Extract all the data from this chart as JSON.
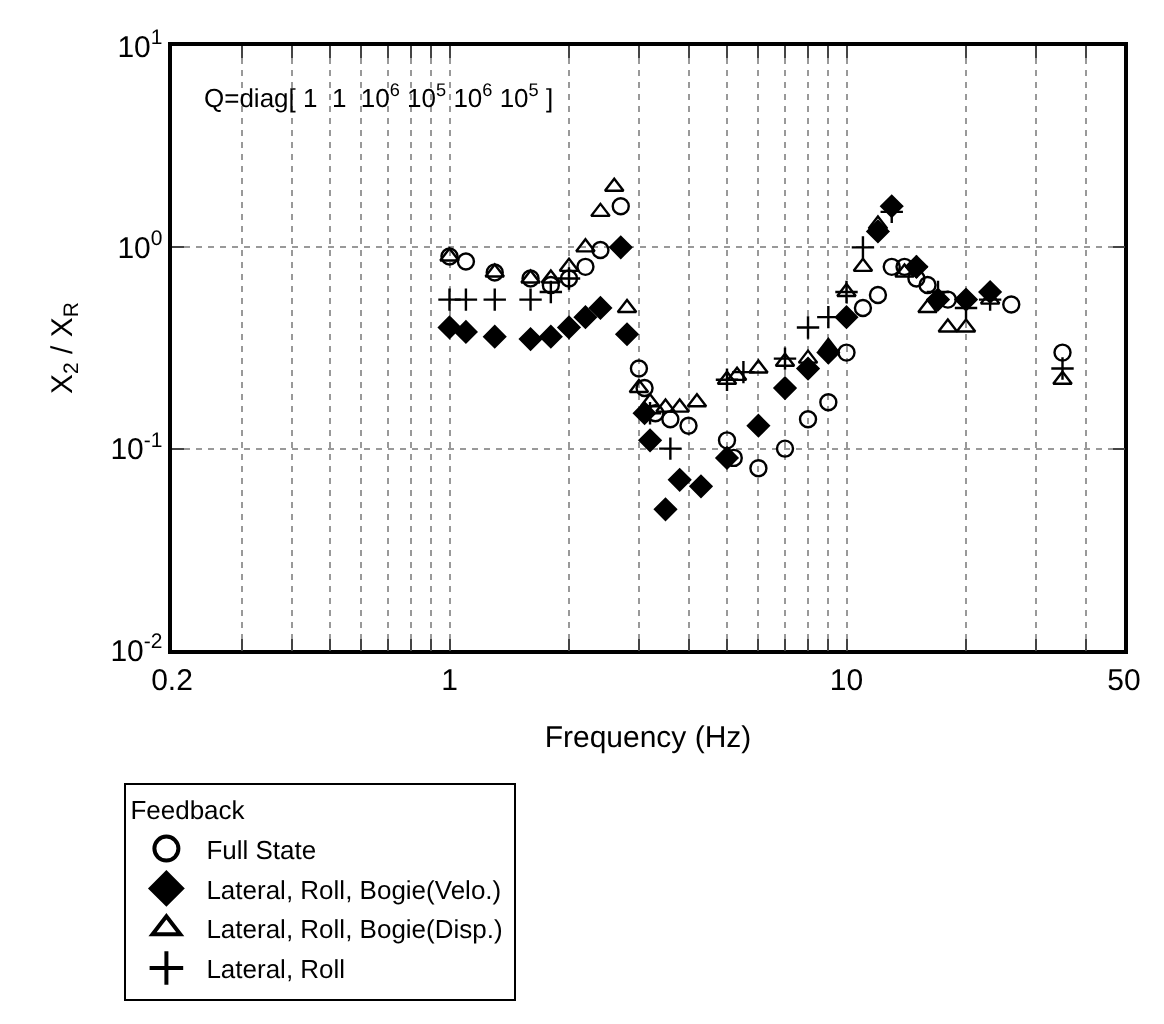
{
  "chart_data": {
    "type": "scatter",
    "xlabel": "Frequency (Hz)",
    "ylabel": "X$_{2}$ / X$_{R}$",
    "legend_title": "Feedback",
    "log": "xy",
    "grid": true,
    "legend": "bottom",
    "annotations": [
      "Q=diag[ 1  1  10$^{6}$ 10$^{5}$ 10$^{6}$ 10$^{5}$ ]"
    ],
    "xlim": [
      0.2,
      50
    ],
    "ylim": [
      0.01,
      10
    ],
    "xticks": [
      0.2,
      {
        "value": 0.3,
        "label": null
      },
      {
        "value": 0.4,
        "label": null
      },
      {
        "value": 0.5,
        "label": null
      },
      {
        "value": 0.6,
        "label": null
      },
      {
        "value": 0.7,
        "label": null
      },
      {
        "value": 0.8,
        "label": null
      },
      {
        "value": 0.9,
        "label": null
      },
      1,
      {
        "value": 2,
        "label": null
      },
      {
        "value": 3,
        "label": null
      },
      {
        "value": 4,
        "label": null
      },
      {
        "value": 5,
        "label": null
      },
      {
        "value": 6,
        "label": null
      },
      {
        "value": 7,
        "label": null
      },
      {
        "value": 8,
        "label": null
      },
      {
        "value": 9,
        "label": null
      },
      10,
      {
        "value": 20,
        "label": null
      },
      {
        "value": 30,
        "label": null
      },
      {
        "value": 40,
        "label": null
      },
      50
    ],
    "yticks": [
      {
        "value": 0.01,
        "label": "10$^{-2}$"
      },
      {
        "value": 0.1,
        "label": "10$^{-1}$"
      },
      {
        "value": 1,
        "label": "10$^{0}$"
      },
      {
        "value": 10,
        "label": "10$^{1}$"
      }
    ],
    "series": [
      {
        "name": "Full State",
        "color": "#000000",
        "marker": "circle",
        "x": [
          1.0,
          1.1,
          1.3,
          1.6,
          1.8,
          2.0,
          2.2,
          2.4,
          2.7,
          3.0,
          3.1,
          3.3,
          3.6,
          4.0,
          4.2,
          5.0,
          5.2,
          6.0,
          7.0,
          8.0,
          9.0,
          10,
          11,
          12,
          13,
          14,
          15,
          16,
          18,
          20,
          23,
          26,
          35
        ],
        "values": [
          0.9,
          0.85,
          0.75,
          0.7,
          0.65,
          0.7,
          0.8,
          0.97,
          1.6,
          0.25,
          0.2,
          0.15,
          0.14,
          0.13,
          null,
          0.11,
          0.09,
          0.08,
          0.1,
          0.14,
          0.17,
          0.3,
          0.5,
          0.58,
          0.8,
          0.8,
          0.7,
          0.65,
          0.55,
          null,
          null,
          0.52,
          0.3
        ]
      },
      {
        "name": "Lateral, Roll, Bogie(Velo.)",
        "color": "#000000",
        "marker": "diamond",
        "x": [
          1.0,
          1.1,
          1.3,
          1.6,
          1.8,
          2.0,
          2.2,
          2.4,
          2.7,
          2.8,
          3.1,
          3.2,
          3.5,
          3.8,
          4.3,
          5.0,
          6.0,
          7.0,
          8.0,
          9.0,
          10,
          12,
          13,
          15,
          17,
          20,
          23
        ],
        "values": [
          0.4,
          0.38,
          0.36,
          0.35,
          0.36,
          0.4,
          0.45,
          0.5,
          1.0,
          0.37,
          0.15,
          0.11,
          0.05,
          0.07,
          0.065,
          0.09,
          0.13,
          0.2,
          0.25,
          0.3,
          0.45,
          1.2,
          1.6,
          0.8,
          0.55,
          0.55,
          0.6
        ]
      },
      {
        "name": "Lateral, Roll, Bogie(Disp.)",
        "color": "#000000",
        "marker": "triangle",
        "x": [
          1.0,
          1.3,
          1.6,
          1.8,
          2.0,
          2.2,
          2.4,
          2.6,
          2.8,
          3.0,
          3.2,
          3.5,
          3.8,
          4.2,
          5.0,
          5.3,
          6.0,
          7.0,
          8.0,
          9.0,
          10,
          11,
          12,
          14,
          16,
          18,
          20,
          23,
          35
        ],
        "values": [
          0.9,
          0.75,
          0.7,
          0.7,
          0.8,
          1.0,
          1.5,
          2.0,
          0.5,
          0.2,
          0.17,
          0.16,
          0.16,
          0.17,
          0.22,
          0.23,
          0.25,
          0.27,
          0.28,
          0.32,
          0.6,
          0.8,
          1.3,
          0.75,
          0.5,
          0.4,
          0.4,
          0.55,
          0.22
        ]
      },
      {
        "name": "Lateral, Roll",
        "color": "#000000",
        "marker": "cross",
        "x": [
          1.0,
          1.1,
          1.3,
          1.6,
          1.8,
          2.0,
          3.2,
          3.6,
          5.0,
          5.5,
          7.0,
          8.0,
          9.0,
          10,
          11,
          13,
          15,
          17,
          20,
          23,
          35
        ],
        "values": [
          0.55,
          0.55,
          0.55,
          0.55,
          0.6,
          0.7,
          0.15,
          0.1,
          0.22,
          0.24,
          0.28,
          0.4,
          0.45,
          0.6,
          1.0,
          1.5,
          0.8,
          0.6,
          0.5,
          0.55,
          0.25
        ]
      }
    ]
  }
}
